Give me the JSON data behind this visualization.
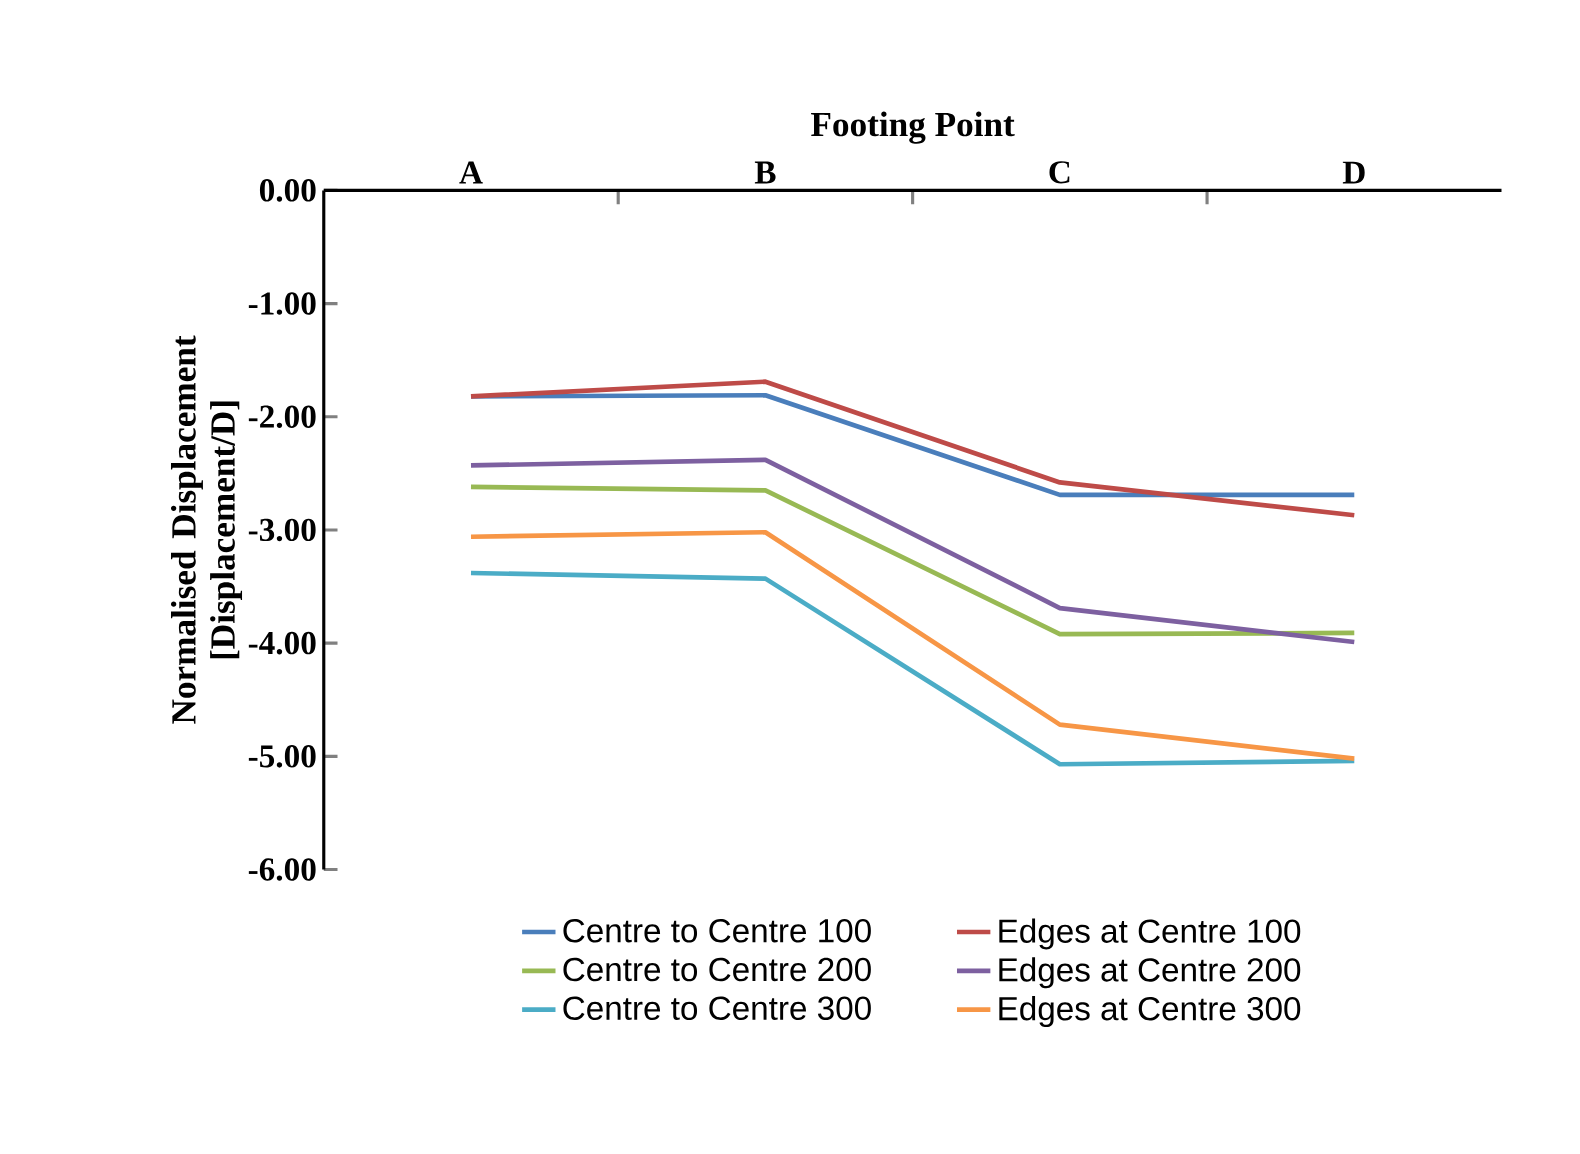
{
  "chart_data": {
    "type": "line",
    "xlabel": "Footing Point",
    "ylabel": "Normalised Displacement [Displacement/D]",
    "categories": [
      "A",
      "B",
      "C",
      "D"
    ],
    "ylim": [
      -6,
      0
    ],
    "yticks": [
      {
        "value": 0,
        "label": "0.00"
      },
      {
        "value": -1,
        "label": "-1.00"
      },
      {
        "value": -2,
        "label": "-2.00"
      },
      {
        "value": -3,
        "label": "-3.00"
      },
      {
        "value": -4,
        "label": "-4.00"
      },
      {
        "value": -5,
        "label": "-5.00"
      },
      {
        "value": -6,
        "label": "-6.00"
      }
    ],
    "series": [
      {
        "name": "Centre to Centre 100",
        "color": "#4a7ebb",
        "values": [
          -1.82,
          -1.81,
          -2.69,
          -2.69
        ]
      },
      {
        "name": "Edges at Centre 100",
        "color": "#be4b48",
        "values": [
          -1.82,
          -1.69,
          -2.58,
          -2.87
        ]
      },
      {
        "name": "Centre to Centre 200",
        "color": "#98b954",
        "values": [
          -2.62,
          -2.65,
          -3.92,
          -3.91
        ]
      },
      {
        "name": "Edges at Centre 200",
        "color": "#7d60a0",
        "values": [
          -2.43,
          -2.38,
          -3.69,
          -3.99
        ]
      },
      {
        "name": "Centre to Centre 300",
        "color": "#4bacc6",
        "values": [
          -3.38,
          -3.43,
          -5.07,
          -5.04
        ]
      },
      {
        "name": "Edges at Centre 300",
        "color": "#f79646",
        "values": [
          -3.06,
          -3.02,
          -4.72,
          -5.02
        ]
      }
    ],
    "legend": "bottom",
    "marker": "none",
    "line_style": "solid",
    "grid": false
  }
}
